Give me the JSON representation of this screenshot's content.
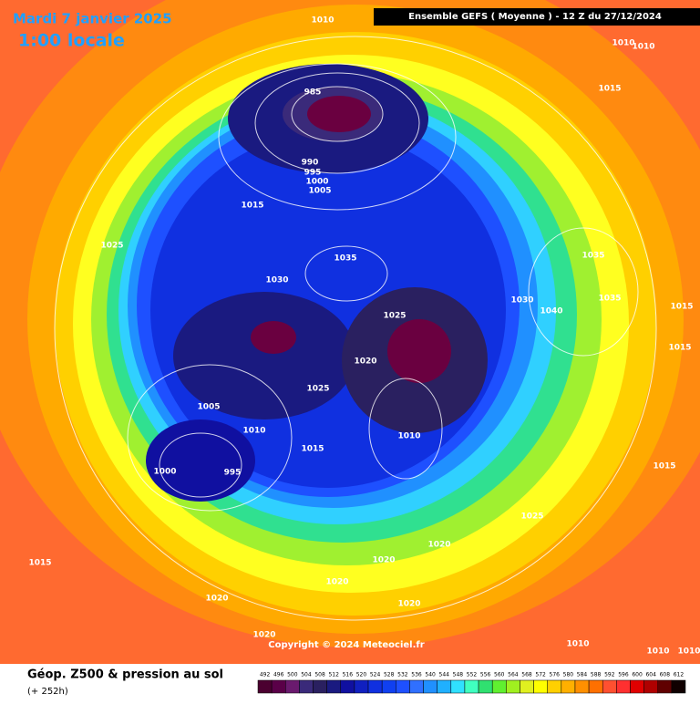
{
  "header": {
    "date": "Mardi 7 janvier 2025",
    "time": "1:00 locale",
    "run": "Ensemble GEFS  ( Moyenne )  -  12 Z du 27/12/2024"
  },
  "map": {
    "pressure_labels": [
      1010,
      1010,
      1010,
      1015,
      985,
      990,
      995,
      1000,
      1005,
      1015,
      1025,
      1035,
      1035,
      1030,
      1030,
      1035,
      1040,
      1015,
      1025,
      1015,
      1020,
      1025,
      1005,
      1010,
      1010,
      1015,
      1000,
      995,
      1015,
      1025,
      1020,
      1015,
      1020,
      1020,
      1020,
      1020,
      1020,
      1010,
      1010,
      1010
    ],
    "copyright": "Copyright © 2024 Meteociel.fr"
  },
  "footer": {
    "title": "Géop. Z500 & pression au sol",
    "lead": "(+ 252h)"
  },
  "colorbar": {
    "values": [
      492,
      496,
      500,
      504,
      508,
      512,
      516,
      520,
      524,
      528,
      532,
      536,
      540,
      544,
      548,
      552,
      556,
      560,
      564,
      568,
      572,
      576,
      580,
      584,
      588,
      592,
      596,
      600,
      604,
      608,
      612
    ],
    "colors": [
      "#4b0030",
      "#5a0048",
      "#6a1a6e",
      "#3a2a7a",
      "#2a2060",
      "#1a1a80",
      "#1010a0",
      "#1020c0",
      "#1030e0",
      "#1040f0",
      "#1e50ff",
      "#3070ff",
      "#2090ff",
      "#20b0ff",
      "#30e0ff",
      "#40ffc0",
      "#30e070",
      "#60f030",
      "#a0f020",
      "#e0f020",
      "#ffff00",
      "#ffd000",
      "#ffb000",
      "#ff9000",
      "#ff7000",
      "#ff5030",
      "#ff3030",
      "#e00000",
      "#b00000",
      "#600000",
      "#100000"
    ]
  }
}
